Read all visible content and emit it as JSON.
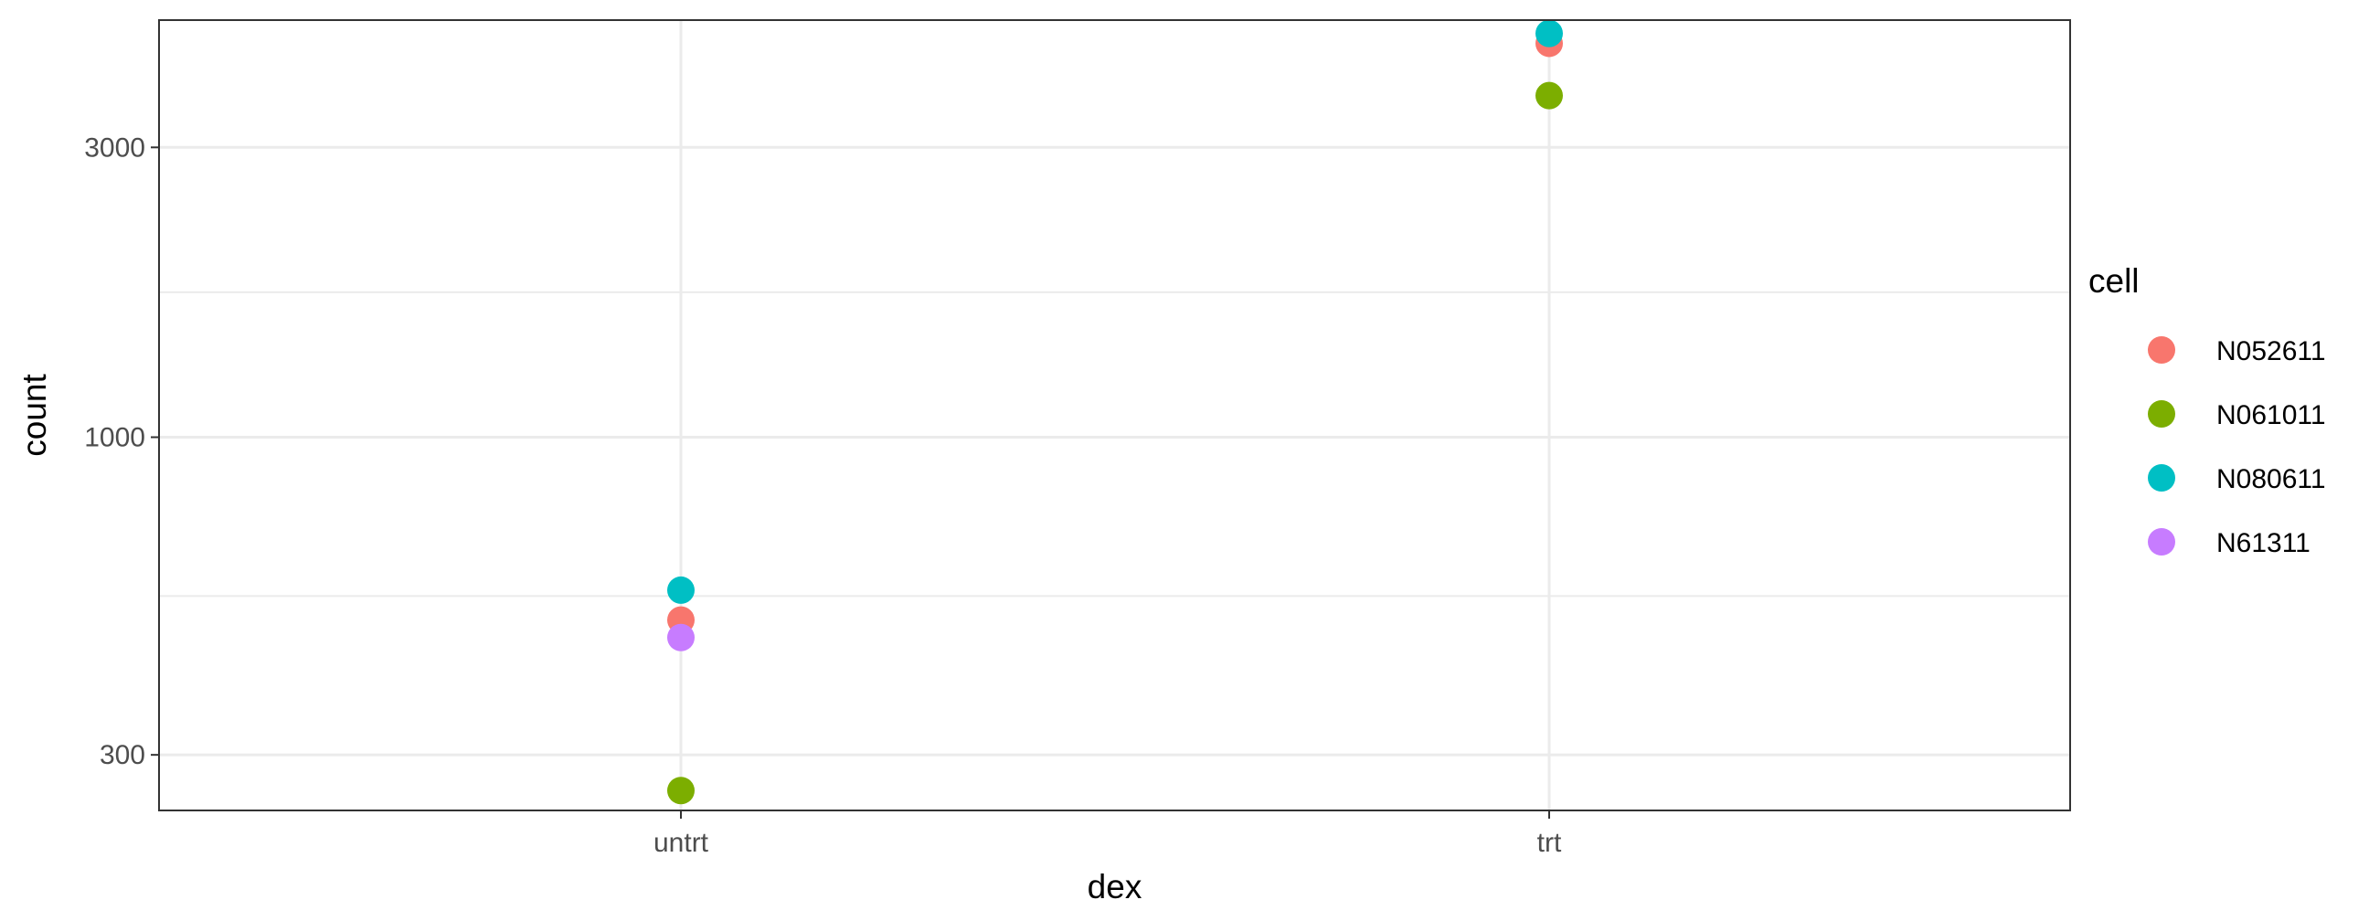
{
  "chart_data": {
    "type": "scatter",
    "title": "",
    "xlabel": "dex",
    "ylabel": "count",
    "x_scale": "categorical",
    "y_scale": "log10",
    "categories": [
      "untrt",
      "trt"
    ],
    "ylim": [
      243,
      4860
    ],
    "y_ticks": [
      300,
      1000,
      3000
    ],
    "y_tick_labels": [
      "300",
      "1000",
      "3000"
    ],
    "grid": true,
    "legend": {
      "title": "cell",
      "position": "right"
    },
    "series": [
      {
        "name": "N052611",
        "color": "#F8766D",
        "points": [
          {
            "x": "untrt",
            "y": 500
          },
          {
            "x": "trt",
            "y": 4450
          }
        ]
      },
      {
        "name": "N061011",
        "color": "#7CAE00",
        "points": [
          {
            "x": "untrt",
            "y": 262
          },
          {
            "x": "trt",
            "y": 3650
          }
        ]
      },
      {
        "name": "N080611",
        "color": "#00BFC4",
        "points": [
          {
            "x": "untrt",
            "y": 560
          },
          {
            "x": "trt",
            "y": 4620
          }
        ]
      },
      {
        "name": "N61311",
        "color": "#C77CFF",
        "points": [
          {
            "x": "untrt",
            "y": 468
          }
        ]
      }
    ]
  }
}
